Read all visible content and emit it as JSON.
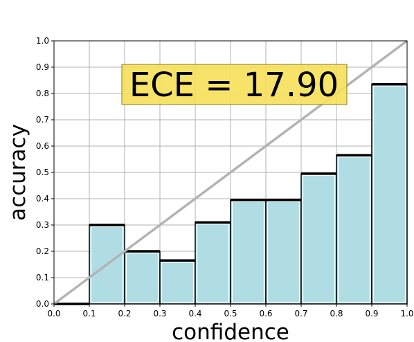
{
  "chart_data": {
    "type": "bar",
    "xlabel": "confidence",
    "ylabel": "accuracy",
    "xlim": [
      0.0,
      1.0
    ],
    "ylim": [
      0.0,
      1.0
    ],
    "grid": true,
    "x_ticks": [
      "0.0",
      "0.1",
      "0.2",
      "0.3",
      "0.4",
      "0.5",
      "0.6",
      "0.7",
      "0.8",
      "0.9",
      "1.0"
    ],
    "y_ticks": [
      "0.0",
      "0.1",
      "0.2",
      "0.3",
      "0.4",
      "0.5",
      "0.6",
      "0.7",
      "0.8",
      "0.9",
      "1.0"
    ],
    "bins": [
      {
        "x0": 0.0,
        "x1": 0.1,
        "value": 0.0
      },
      {
        "x0": 0.1,
        "x1": 0.2,
        "value": 0.3
      },
      {
        "x0": 0.2,
        "x1": 0.3,
        "value": 0.2
      },
      {
        "x0": 0.3,
        "x1": 0.4,
        "value": 0.165
      },
      {
        "x0": 0.4,
        "x1": 0.5,
        "value": 0.31
      },
      {
        "x0": 0.5,
        "x1": 0.6,
        "value": 0.395
      },
      {
        "x0": 0.6,
        "x1": 0.7,
        "value": 0.395
      },
      {
        "x0": 0.7,
        "x1": 0.8,
        "value": 0.495
      },
      {
        "x0": 0.8,
        "x1": 0.9,
        "value": 0.565
      },
      {
        "x0": 0.9,
        "x1": 1.0,
        "value": 0.835
      }
    ],
    "reference_line": {
      "from": [
        0.0,
        0.0
      ],
      "to": [
        1.0,
        1.0
      ]
    },
    "annotation": "ECE = 17.90",
    "colors": {
      "bar_fill": "#b0dde4",
      "bar_edge": "#000000",
      "diagonal": "#b3b3b3",
      "annotation_box": "#f7e05a",
      "grid": "#b0b0b0"
    }
  }
}
